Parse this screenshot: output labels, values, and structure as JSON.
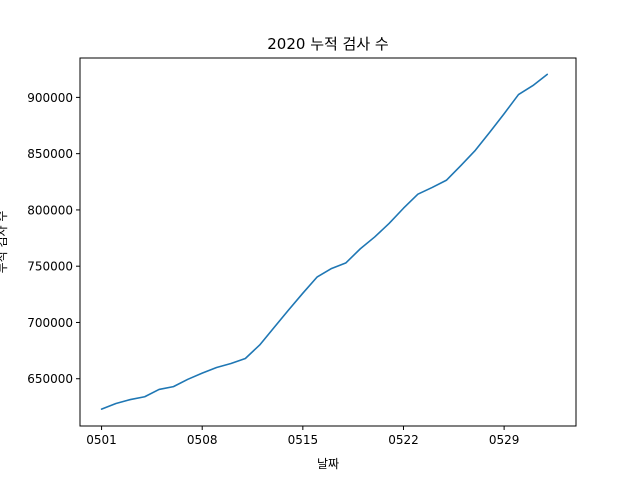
{
  "chart_data": {
    "type": "line",
    "title": "2020 누적 검사 수",
    "xlabel": "날짜",
    "ylabel": "누적 검사 수",
    "x": [
      "0501",
      "0502",
      "0503",
      "0504",
      "0505",
      "0506",
      "0507",
      "0508",
      "0509",
      "0510",
      "0511",
      "0512",
      "0513",
      "0514",
      "0515",
      "0516",
      "0517",
      "0518",
      "0519",
      "0520",
      "0521",
      "0522",
      "0523",
      "0524",
      "0525",
      "0526",
      "0527",
      "0528",
      "0529",
      "0530",
      "0531",
      "0601"
    ],
    "x_tick_labels": [
      "0501",
      "0508",
      "0515",
      "0522",
      "0529"
    ],
    "y_tick_labels": [
      "650000",
      "700000",
      "750000",
      "800000",
      "850000",
      "900000"
    ],
    "y_ticks": [
      650000,
      700000,
      750000,
      800000,
      850000,
      900000
    ],
    "ylim": [
      608000,
      935000
    ],
    "xlim": [
      -1.5,
      33.0
    ],
    "series": [
      {
        "values": [
          623000,
          628000,
          631500,
          634000,
          640500,
          643000,
          649500,
          655000,
          660000,
          663500,
          668000,
          680000,
          695500,
          711000,
          726000,
          740500,
          748000,
          753000,
          765500,
          776000,
          788000,
          801500,
          814000,
          820000,
          826500,
          839500,
          853000,
          869000,
          885500,
          902500,
          910500,
          920500
        ],
        "color": "#1f77b4"
      }
    ],
    "grid": false
  }
}
